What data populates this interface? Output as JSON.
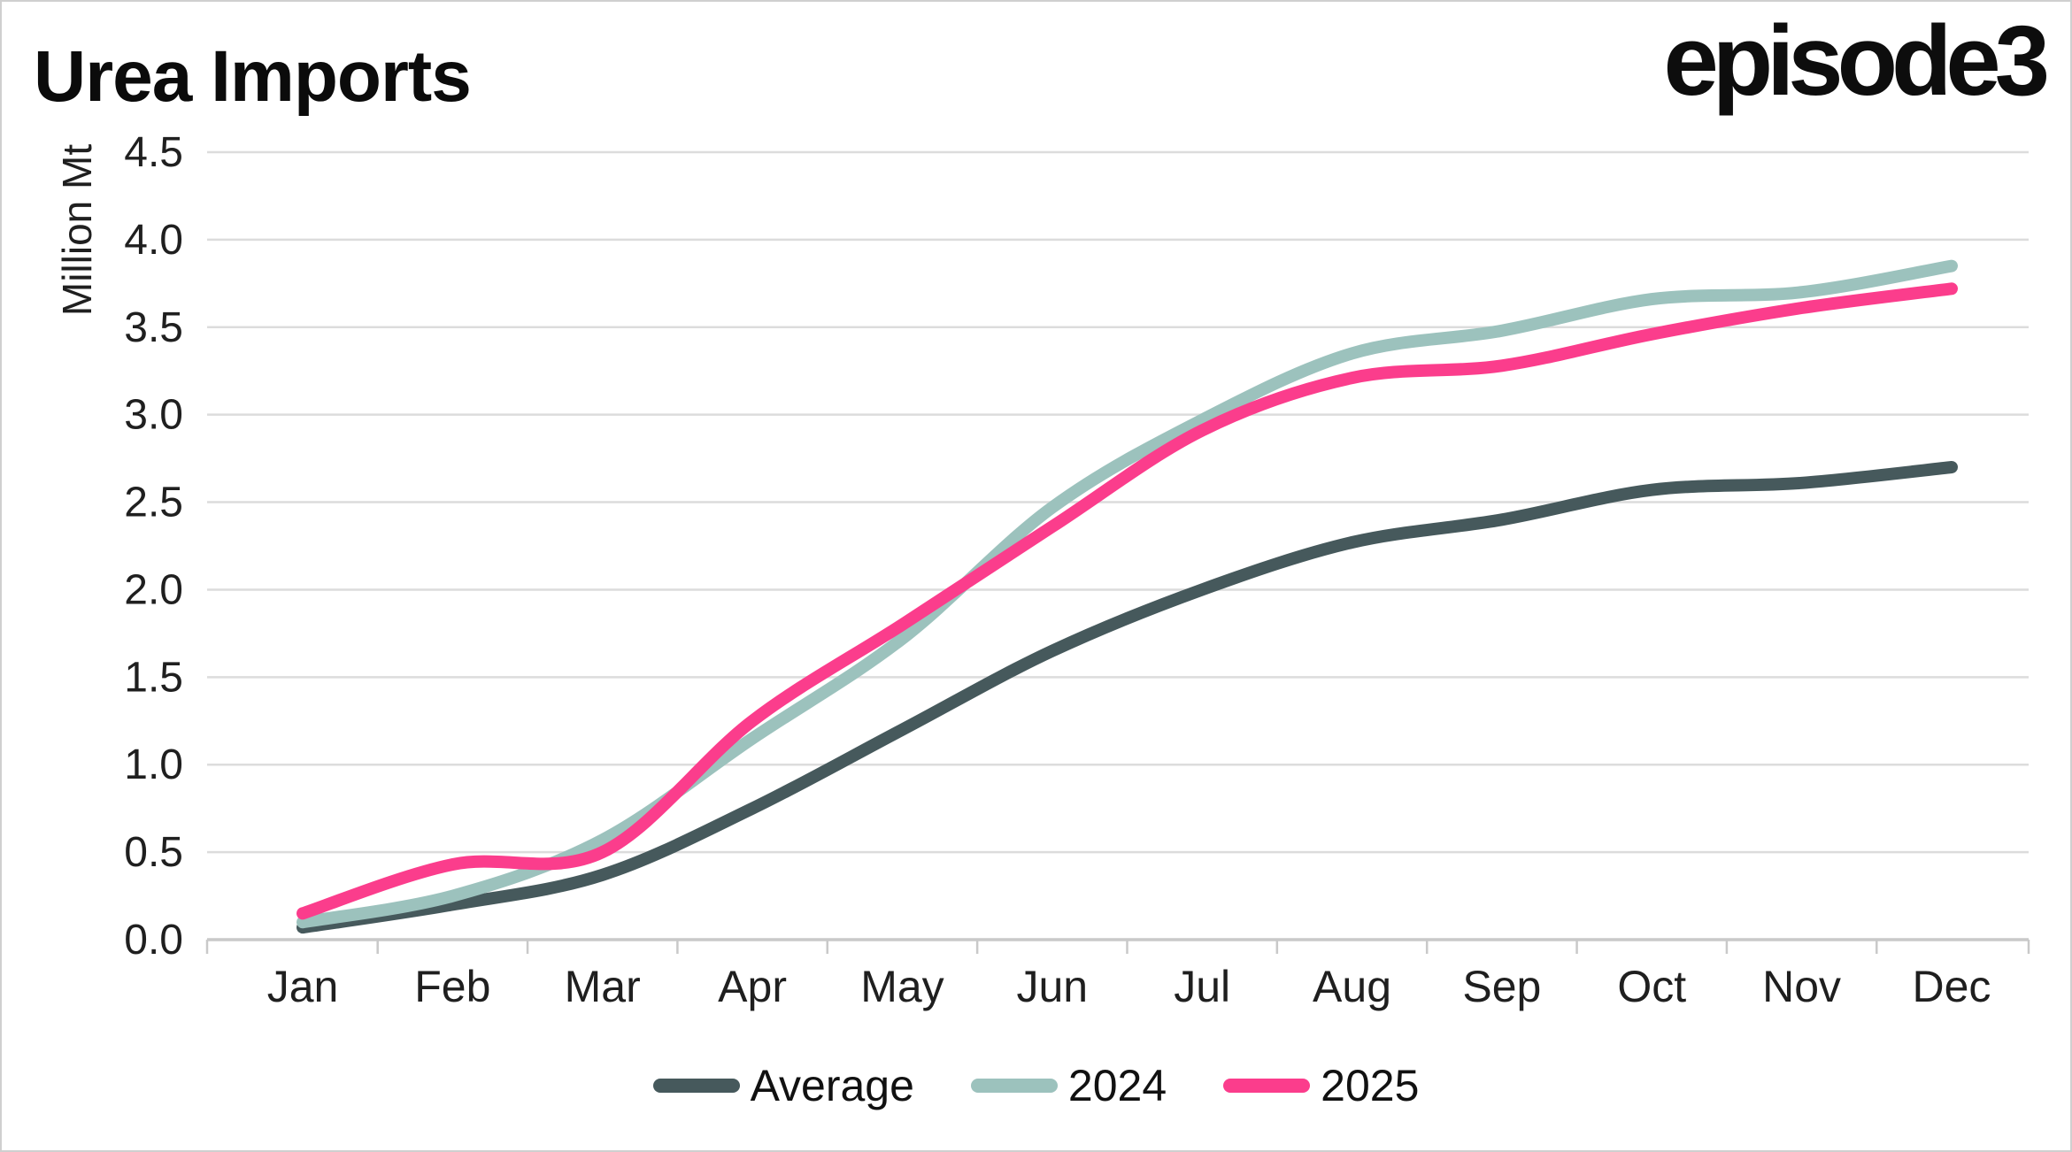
{
  "header": {
    "title": "Urea Imports",
    "logo_text": "episode3"
  },
  "chart_data": {
    "type": "line",
    "title": "Urea Imports",
    "xlabel": "",
    "ylabel": "Million Mt",
    "categories": [
      "Jan",
      "Feb",
      "Mar",
      "Apr",
      "May",
      "Jun",
      "Jul",
      "Aug",
      "Sep",
      "Oct",
      "Nov",
      "Dec"
    ],
    "series": [
      {
        "name": "Average",
        "color": "#46595c",
        "values": [
          0.07,
          0.2,
          0.37,
          0.75,
          1.2,
          1.65,
          2.0,
          2.27,
          2.4,
          2.57,
          2.61,
          2.7
        ]
      },
      {
        "name": "2024",
        "color": "#9cc2bd",
        "values": [
          0.1,
          0.25,
          0.57,
          1.15,
          1.72,
          2.47,
          2.97,
          3.35,
          3.48,
          3.66,
          3.7,
          3.85
        ]
      },
      {
        "name": "2025",
        "color": "#fb3d8c",
        "values": [
          0.15,
          0.43,
          0.5,
          1.25,
          1.8,
          2.36,
          2.91,
          3.21,
          3.28,
          3.46,
          3.61,
          3.72
        ]
      }
    ],
    "ylim": [
      0,
      4.5
    ],
    "ytick_step": 0.5,
    "ytick_labels": [
      "0.0",
      "0.5",
      "1.0",
      "1.5",
      "2.0",
      "2.5",
      "3.0",
      "3.5",
      "4.0",
      "4.5"
    ],
    "grid": true,
    "grid_color": "#dcdcdc",
    "axis_color": "#c9c9c9",
    "tick_label_color": "#1f1f1f",
    "legend_position": "bottom",
    "legend": [
      "Average",
      "2024",
      "2025"
    ]
  }
}
